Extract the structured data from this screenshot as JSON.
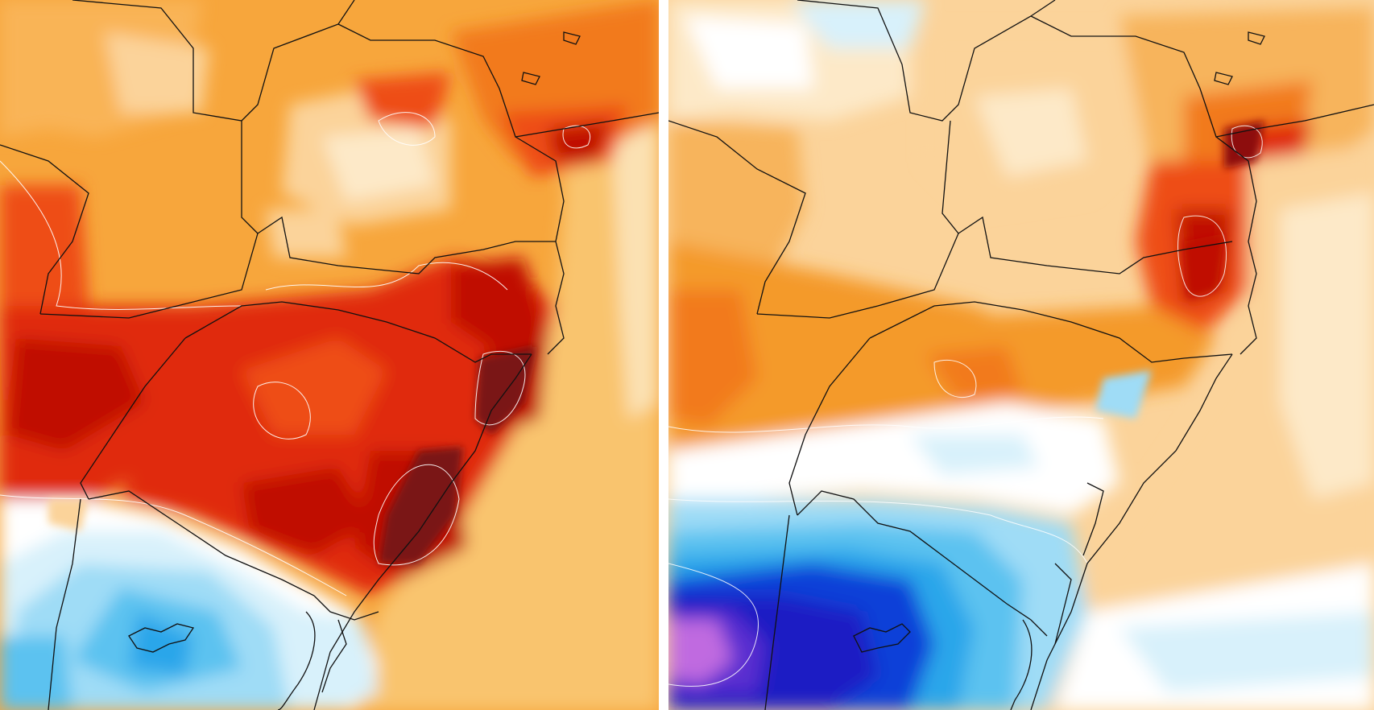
{
  "panels": [
    {
      "id": "left",
      "field": "temperature-anomaly",
      "palette": [
        "#fde9c8",
        "#fbd39a",
        "#f7b45b",
        "#f49a2a",
        "#f27a1b",
        "#ee4e12",
        "#e02a0c",
        "#c01006",
        "#8d0a08",
        "#6a1a1a"
      ],
      "cold_palette": [
        "#ffffff",
        "#d8f1fb",
        "#9fdcf6",
        "#5cc2f0",
        "#2aa6ea",
        "#1478de"
      ]
    },
    {
      "id": "right",
      "field": "temperature-anomaly",
      "palette": [
        "#fde9c8",
        "#fbd39a",
        "#f7b45b",
        "#f49a2a",
        "#f27a1b",
        "#ee4e12",
        "#e02a0c",
        "#c01006",
        "#8d0a08"
      ],
      "cold_palette": [
        "#ffffff",
        "#d8f1fb",
        "#9fdcf6",
        "#5cc2f0",
        "#2aa6ea",
        "#1478de",
        "#0b3fd8",
        "#1a1fc4",
        "#5a2fd0",
        "#c06ae0"
      ]
    }
  ],
  "colors": {
    "ocean_warm": "#f9c46e",
    "ocean_pale": "#fbe1b2",
    "border": "#111111",
    "contour": "#ffffff"
  }
}
